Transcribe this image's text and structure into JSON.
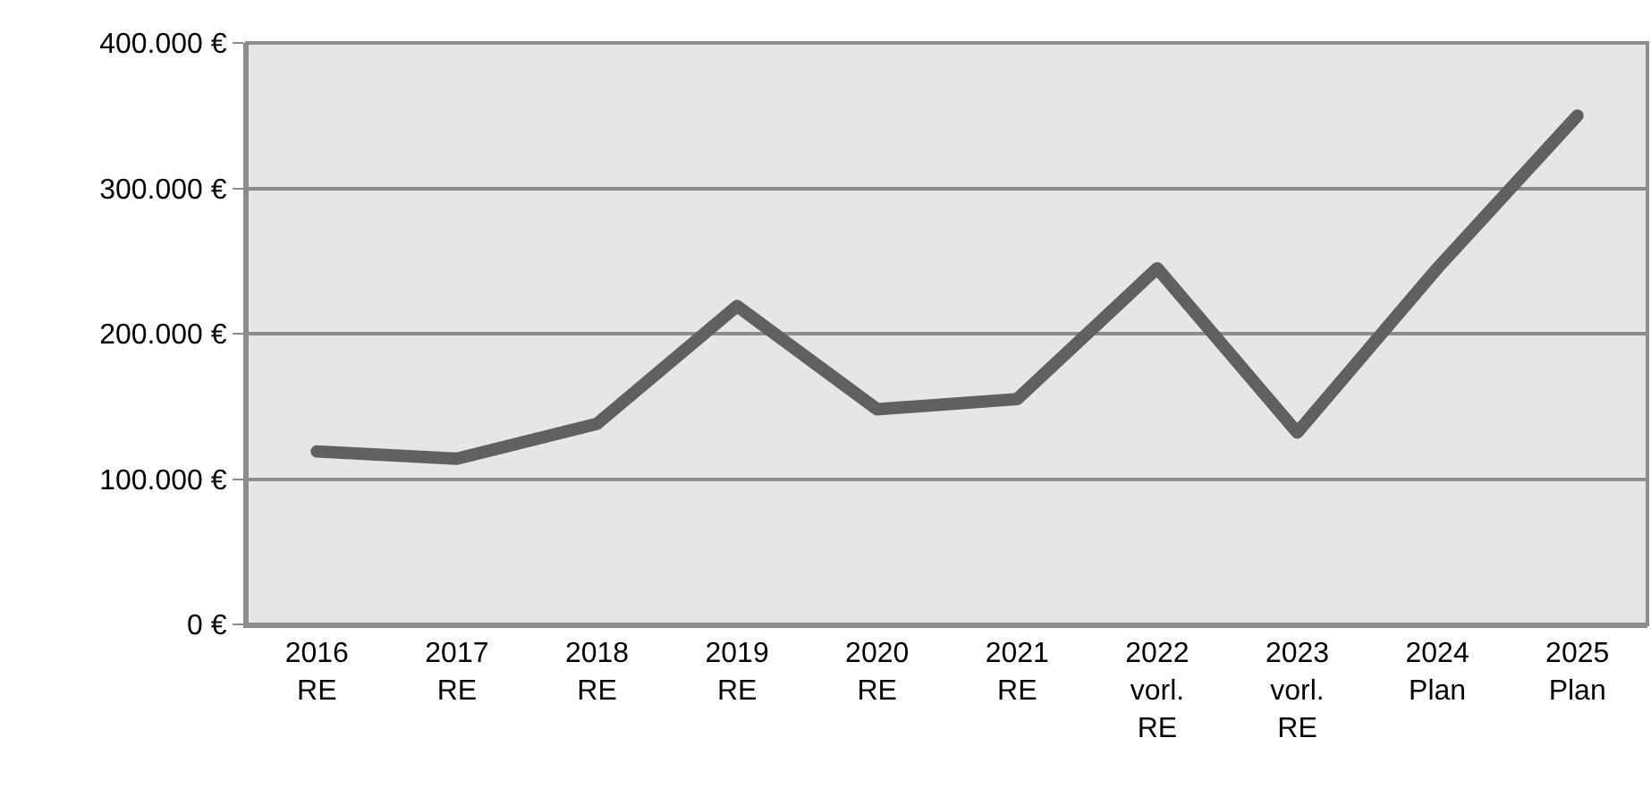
{
  "chart_data": {
    "type": "line",
    "categories": [
      "2016\nRE",
      "2017\nRE",
      "2018\nRE",
      "2019\nRE",
      "2020\nRE",
      "2021\nRE",
      "2022\nvorl.\nRE",
      "2023\nvorl.\nRE",
      "2024\nPlan",
      "2025\nPlan"
    ],
    "series": [
      {
        "color": "#606060",
        "values": [
          119000,
          114000,
          138000,
          219000,
          148000,
          155000,
          245000,
          132000,
          245000,
          350000
        ]
      }
    ],
    "ylim": [
      0,
      400000
    ],
    "yticks": [
      {
        "value": 0,
        "label": "0 €"
      },
      {
        "value": 100000,
        "label": "100.000 €"
      },
      {
        "value": 200000,
        "label": "200.000 €"
      },
      {
        "value": 300000,
        "label": "300.000 €"
      },
      {
        "value": 400000,
        "label": "400.000 €"
      }
    ],
    "grid": "y",
    "marker": "none",
    "line_style": "solid"
  }
}
